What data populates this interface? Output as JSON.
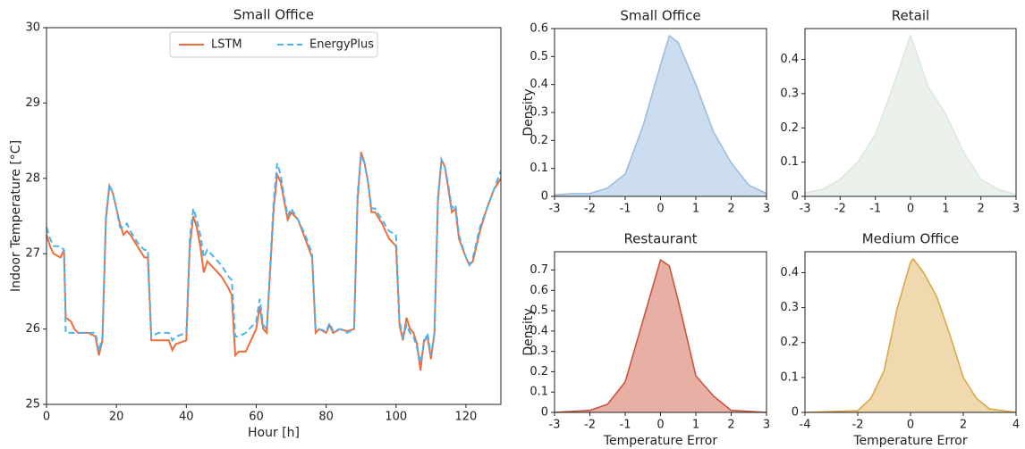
{
  "chart_data": [
    {
      "type": "line",
      "title": "Small Office",
      "xlabel": "Hour [h]",
      "ylabel": "Indoor Temperature [°C]",
      "x": [
        0,
        1,
        2,
        4,
        5,
        5.5,
        7,
        8,
        9,
        12,
        14,
        15,
        16,
        17,
        18,
        19,
        20,
        21,
        22,
        23,
        24,
        26,
        28,
        29,
        30,
        32,
        34,
        35,
        36,
        37,
        40,
        41,
        42,
        43,
        44,
        45,
        46,
        48,
        50,
        52,
        53,
        54,
        55,
        57,
        58,
        60,
        61,
        62,
        63,
        65,
        66,
        67,
        68,
        69,
        70,
        72,
        74,
        76,
        77,
        78,
        80,
        81,
        82,
        84,
        86,
        88,
        89,
        90,
        91,
        92,
        93,
        94,
        96,
        98,
        100,
        101,
        102,
        103,
        104,
        105,
        106,
        107,
        108,
        109,
        110,
        111,
        112,
        113,
        114,
        115,
        116,
        117,
        118,
        120,
        121,
        122,
        124,
        126,
        128,
        130
      ],
      "series": [
        {
          "name": "LSTM",
          "color": "#ef6c3b",
          "linestyle": "solid",
          "values": [
            27.25,
            27.1,
            27.0,
            26.95,
            27.05,
            26.15,
            26.1,
            26.0,
            25.95,
            25.95,
            25.9,
            25.65,
            25.85,
            27.45,
            27.9,
            27.8,
            27.6,
            27.4,
            27.25,
            27.3,
            27.25,
            27.1,
            26.95,
            26.95,
            25.85,
            25.85,
            25.85,
            25.85,
            25.72,
            25.8,
            25.85,
            27.1,
            27.5,
            27.35,
            27.1,
            26.75,
            26.9,
            26.8,
            26.7,
            26.55,
            26.45,
            25.65,
            25.7,
            25.7,
            25.8,
            26.0,
            26.3,
            26.0,
            25.95,
            27.6,
            28.05,
            27.95,
            27.7,
            27.45,
            27.55,
            27.45,
            27.2,
            26.95,
            25.95,
            26.0,
            25.95,
            26.05,
            25.95,
            26.0,
            25.97,
            26.0,
            27.7,
            28.35,
            28.2,
            27.95,
            27.55,
            27.55,
            27.4,
            27.2,
            27.1,
            26.05,
            25.85,
            26.15,
            26.0,
            25.95,
            25.8,
            25.45,
            25.85,
            25.9,
            25.6,
            25.95,
            27.7,
            28.25,
            28.15,
            27.85,
            27.55,
            27.6,
            27.2,
            26.95,
            26.85,
            26.9,
            27.3,
            27.6,
            27.85,
            28.0
          ]
        },
        {
          "name": "EnergyPlus",
          "color": "#4ab3f0",
          "linestyle": "dashed",
          "values": [
            27.35,
            27.2,
            27.1,
            27.1,
            27.05,
            25.95,
            25.95,
            25.95,
            25.95,
            25.95,
            25.95,
            25.7,
            25.9,
            27.5,
            27.92,
            27.8,
            27.6,
            27.35,
            27.35,
            27.4,
            27.3,
            27.15,
            27.05,
            27.05,
            25.9,
            25.95,
            25.95,
            25.95,
            25.85,
            25.9,
            25.95,
            27.2,
            27.6,
            27.45,
            27.25,
            26.95,
            27.05,
            26.95,
            26.85,
            26.7,
            26.65,
            25.9,
            25.9,
            25.95,
            26.0,
            26.1,
            26.4,
            26.05,
            26.0,
            27.7,
            28.2,
            28.05,
            27.75,
            27.5,
            27.6,
            27.45,
            27.25,
            27.0,
            26.0,
            26.0,
            25.97,
            26.08,
            25.97,
            26.0,
            25.95,
            26.0,
            27.8,
            28.3,
            28.2,
            27.95,
            27.6,
            27.6,
            27.45,
            27.3,
            27.25,
            26.1,
            25.9,
            26.05,
            25.95,
            25.9,
            25.75,
            25.55,
            25.8,
            25.95,
            25.65,
            25.95,
            27.75,
            28.25,
            28.15,
            27.9,
            27.6,
            27.65,
            27.25,
            26.95,
            26.85,
            26.95,
            27.35,
            27.6,
            27.85,
            28.1
          ]
        }
      ],
      "xlim": [
        0,
        130
      ],
      "xticks": [
        0,
        20,
        40,
        60,
        80,
        100,
        120
      ],
      "ylim": [
        25,
        30
      ],
      "yticks": [
        25,
        26,
        27,
        28,
        29,
        30
      ],
      "legend": "upper center"
    },
    {
      "type": "area",
      "title": "Small Office",
      "ylabel": "Density",
      "color": "#a9c6e4",
      "line_color": "#9dbde0",
      "x": [
        -3,
        -2.5,
        -2,
        -1.5,
        -1,
        -0.5,
        0,
        0.25,
        0.5,
        1,
        1.5,
        2,
        2.5,
        3
      ],
      "values": [
        0.005,
        0.01,
        0.01,
        0.03,
        0.08,
        0.25,
        0.47,
        0.575,
        0.55,
        0.4,
        0.23,
        0.12,
        0.04,
        0.01
      ],
      "xlim": [
        -3,
        3
      ],
      "xticks": [
        -3,
        -2,
        -1,
        0,
        1,
        2,
        3
      ],
      "ylim": [
        0,
        0.6
      ],
      "yticks": [
        0.0,
        0.1,
        0.2,
        0.3,
        0.4,
        0.5,
        0.6
      ]
    },
    {
      "type": "area",
      "title": "Retail",
      "color": "#dde8dd",
      "line_color": "#dde8dd",
      "x": [
        -3,
        -2.5,
        -2,
        -1.5,
        -1,
        -0.5,
        0,
        0.5,
        1,
        1.5,
        2,
        2.5,
        3
      ],
      "values": [
        0.01,
        0.02,
        0.05,
        0.1,
        0.18,
        0.32,
        0.47,
        0.32,
        0.24,
        0.13,
        0.05,
        0.02,
        0.005
      ],
      "xlim": [
        -3,
        3
      ],
      "xticks": [
        -3,
        -2,
        -1,
        0,
        1,
        2,
        3
      ],
      "ylim": [
        0,
        0.49
      ],
      "yticks": [
        0.0,
        0.1,
        0.2,
        0.3,
        0.4
      ]
    },
    {
      "type": "area",
      "title": "Restaurant",
      "xlabel": "Temperature Error",
      "ylabel": "Density",
      "color": "#d87a68",
      "line_color": "#c9553f",
      "x": [
        -3,
        -2,
        -1.5,
        -1,
        -0.5,
        0,
        0.25,
        0.5,
        1,
        1.5,
        2,
        3
      ],
      "values": [
        0,
        0.01,
        0.04,
        0.15,
        0.45,
        0.75,
        0.72,
        0.55,
        0.18,
        0.08,
        0.01,
        0
      ],
      "xlim": [
        -3,
        3
      ],
      "xticks": [
        -3,
        -2,
        -1,
        0,
        1,
        2,
        3
      ],
      "ylim": [
        0,
        0.79
      ],
      "yticks": [
        0.0,
        0.1,
        0.2,
        0.3,
        0.4,
        0.5,
        0.6,
        0.7
      ]
    },
    {
      "type": "area",
      "title": "Medium Office",
      "xlabel": "Temperature Error",
      "color": "#e6c07a",
      "line_color": "#dba84a",
      "x": [
        -4,
        -2,
        -1.5,
        -1,
        -0.5,
        0,
        0.1,
        0.5,
        1,
        1.5,
        2,
        2.5,
        3,
        4
      ],
      "values": [
        0,
        0.005,
        0.04,
        0.12,
        0.3,
        0.43,
        0.44,
        0.4,
        0.33,
        0.22,
        0.1,
        0.04,
        0.01,
        0
      ],
      "xlim": [
        -4,
        4
      ],
      "xticks": [
        -4,
        -2,
        0,
        2,
        4
      ],
      "ylim": [
        0,
        0.46
      ],
      "yticks": [
        0.0,
        0.1,
        0.2,
        0.3,
        0.4
      ]
    }
  ]
}
